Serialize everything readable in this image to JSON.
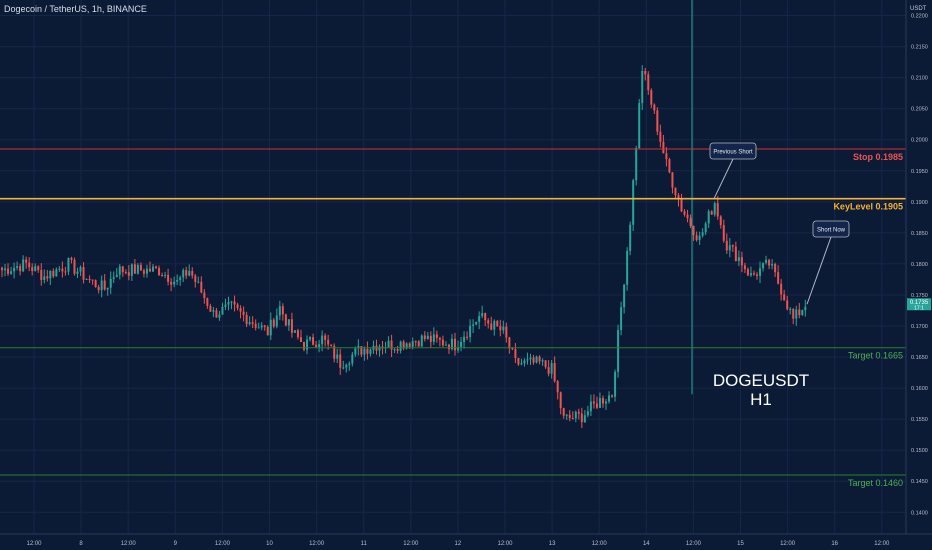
{
  "header": {
    "title": "Dogecoin / TetherUS, 1h, BINANCE",
    "unit": "USDT"
  },
  "colors": {
    "background": "#0c1b35",
    "up": "#26a69a",
    "down": "#ef5350",
    "stop": "#d32f2f",
    "keylevel": "#f5b133",
    "target": "#2e7d32"
  },
  "chart_data": {
    "type": "candlestick",
    "symbol": "DOGEUSDT",
    "timeframe": "H1",
    "y_axis": {
      "ticks": [
        "0.1400",
        "0.1450",
        "0.1500",
        "0.1550",
        "0.1600",
        "0.1650",
        "0.1700",
        "0.1750",
        "0.1800",
        "0.1850",
        "0.1900",
        "0.1950",
        "0.2000",
        "0.2050",
        "0.2100",
        "0.2150",
        "0.2200"
      ],
      "range": [
        0.1365,
        0.2225
      ],
      "current_price": "0.1735",
      "current_sub": "17:1"
    },
    "x_axis": {
      "ticks": [
        "12:00",
        "8",
        "12:00",
        "9",
        "12:00",
        "10",
        "12:00",
        "11",
        "12:00",
        "12",
        "12:00",
        "13",
        "12:00",
        "14",
        "12:00",
        "15",
        "12:00",
        "16",
        "12:00"
      ]
    },
    "levels": [
      {
        "label": "Stop 0.1985",
        "value": 0.1985,
        "tag": "0.1985",
        "kind": "stop"
      },
      {
        "label": "KeyLevel 0.1905",
        "value": 0.1905,
        "tag": "0.1905",
        "kind": "key"
      },
      {
        "label": "Target 0.1665",
        "value": 0.1665,
        "tag": "0.1665",
        "kind": "target"
      },
      {
        "label": "Target 0.1460",
        "value": 0.146,
        "tag": "0.1460",
        "kind": "target"
      }
    ],
    "annotations": [
      {
        "text": "Previous Short",
        "at_close_index": 186
      },
      {
        "text": "Short Now",
        "at_close_index": 210
      }
    ],
    "watermark": [
      "DOGEUSDT",
      "H1"
    ],
    "close_anchors": [
      [
        0,
        0.179
      ],
      [
        8,
        0.18
      ],
      [
        14,
        0.178
      ],
      [
        22,
        0.18
      ],
      [
        30,
        0.177
      ],
      [
        34,
        0.176
      ],
      [
        38,
        0.179
      ],
      [
        44,
        0.179
      ],
      [
        52,
        0.179
      ],
      [
        58,
        0.177
      ],
      [
        62,
        0.179
      ],
      [
        66,
        0.1755
      ],
      [
        70,
        0.172
      ],
      [
        76,
        0.173
      ],
      [
        82,
        0.171
      ],
      [
        88,
        0.169
      ],
      [
        92,
        0.173
      ],
      [
        96,
        0.169
      ],
      [
        100,
        0.167
      ],
      [
        106,
        0.168
      ],
      [
        112,
        0.164
      ],
      [
        118,
        0.166
      ],
      [
        124,
        0.167
      ],
      [
        130,
        0.167
      ],
      [
        140,
        0.168
      ],
      [
        150,
        0.167
      ],
      [
        158,
        0.1715
      ],
      [
        166,
        0.169
      ],
      [
        170,
        0.164
      ],
      [
        178,
        0.164
      ],
      [
        182,
        0.163
      ],
      [
        186,
        0.155
      ],
      [
        192,
        0.1555
      ],
      [
        198,
        0.158
      ],
      [
        202,
        0.159
      ],
      [
        208,
        0.187
      ],
      [
        212,
        0.2115
      ],
      [
        216,
        0.204
      ],
      [
        220,
        0.196
      ],
      [
        225,
        0.189
      ],
      [
        231,
        0.184
      ],
      [
        236,
        0.19
      ],
      [
        240,
        0.183
      ],
      [
        244,
        0.181
      ],
      [
        248,
        0.178
      ],
      [
        254,
        0.18
      ],
      [
        258,
        0.176
      ],
      [
        262,
        0.171
      ],
      [
        266,
        0.1735
      ]
    ]
  }
}
